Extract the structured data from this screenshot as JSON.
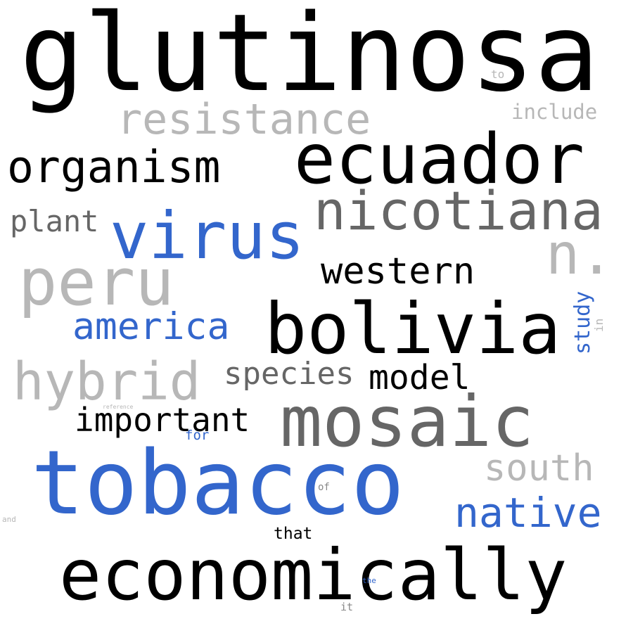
{
  "word_cloud": {
    "background": "#ffffff",
    "words": {
      "glutinosa": "glutinosa",
      "resistance": "resistance",
      "include": "include",
      "to": "to",
      "organism": "organism",
      "ecuador": "ecuador",
      "nicotiana": "nicotiana",
      "plant": "plant",
      "virus": "virus",
      "n": "n.",
      "peru": "peru",
      "western": "western",
      "study": "study",
      "in": "in",
      "bolivia": "bolivia",
      "america": "america",
      "hybrid": "hybrid",
      "species": "species",
      "model": "model",
      "mosaic": "mosaic",
      "reference": "reference",
      "important": "important",
      "for": "for",
      "tobacco": "tobacco",
      "south": "south",
      "of": "of",
      "native": "native",
      "and": "and",
      "that": "that",
      "economically": "economically",
      "the": "the",
      "it": "it"
    },
    "colors": {
      "black": "#000000",
      "blue": "#3366cc",
      "dark_gray": "#666666",
      "light_gray": "#b7b7b7"
    }
  }
}
